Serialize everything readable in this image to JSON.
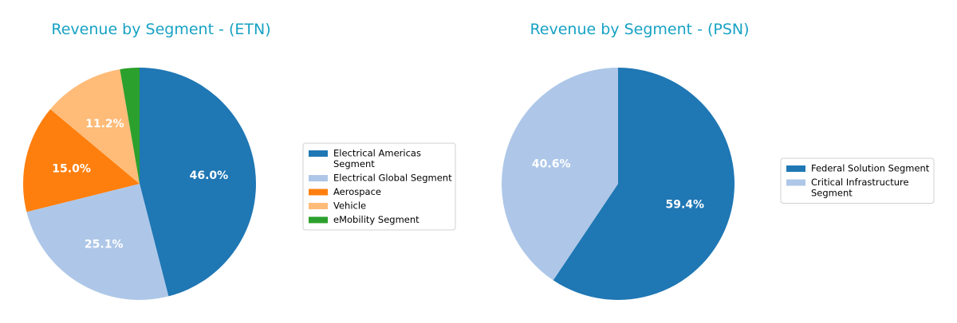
{
  "chart_data": [
    {
      "type": "pie",
      "title": "Revenue by Segment - (ETN)",
      "start_angle_deg": 90,
      "direction": "clockwise",
      "slices": [
        {
          "label": "Electrical Americas Segment",
          "legend_lines": [
            "Electrical Americas",
            "Segment"
          ],
          "pct": 46.0,
          "pct_label": "46.0%",
          "color": "#1f77b4"
        },
        {
          "label": "Electrical Global Segment",
          "legend_lines": [
            "Electrical Global Segment"
          ],
          "pct": 25.1,
          "pct_label": "25.1%",
          "color": "#aec7e8"
        },
        {
          "label": "Aerospace",
          "legend_lines": [
            "Aerospace"
          ],
          "pct": 15.0,
          "pct_label": "15.0%",
          "color": "#ff7f0e"
        },
        {
          "label": "Vehicle",
          "legend_lines": [
            "Vehicle"
          ],
          "pct": 11.2,
          "pct_label": "11.2%",
          "color": "#ffbb78"
        },
        {
          "label": "eMobility Segment",
          "legend_lines": [
            "eMobility Segment"
          ],
          "pct": 2.7,
          "pct_label": "",
          "color": "#2ca02c"
        }
      ],
      "legend_position": "right"
    },
    {
      "type": "pie",
      "title": "Revenue by Segment - (PSN)",
      "start_angle_deg": 90,
      "direction": "clockwise",
      "slices": [
        {
          "label": "Federal Solution Segment",
          "legend_lines": [
            "Federal Solution Segment"
          ],
          "pct": 59.4,
          "pct_label": "59.4%",
          "color": "#1f77b4"
        },
        {
          "label": "Critical Infrastructure Segment",
          "legend_lines": [
            "Critical Infrastructure",
            "Segment"
          ],
          "pct": 40.6,
          "pct_label": "40.6%",
          "color": "#aec7e8"
        }
      ],
      "legend_position": "right"
    }
  ]
}
